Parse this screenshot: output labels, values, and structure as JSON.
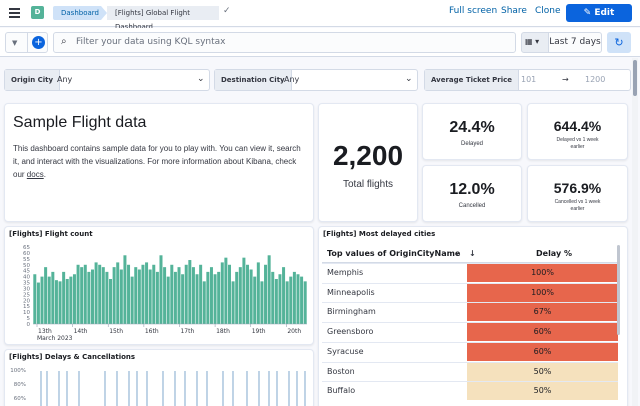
{
  "header": {
    "breadcrumb_root": "Dashboard",
    "breadcrumb_current": "[Flights] Global Flight Dashboard",
    "avatar_initial": "D",
    "full_screen": "Full screen",
    "share": "Share",
    "clone": "Clone",
    "edit": "Edit"
  },
  "query": {
    "placeholder": "Filter your data using KQL syntax",
    "time_range": "Last 7 days"
  },
  "controls": {
    "origin_label": "Origin City",
    "origin_value": "Any",
    "dest_label": "Destination City",
    "dest_value": "Any",
    "price_label": "Average Ticket Price",
    "price_min": "101",
    "price_arrow": "→",
    "price_max": "1200"
  },
  "intro": {
    "title": "Sample Flight data",
    "text": "This dashboard contains sample data for you to play with. You can view it, search it, and interact with the visualizations. For more information about Kibana, check our ",
    "link": "docs",
    "end": "."
  },
  "metrics": {
    "total_value": "2,200",
    "total_label": "Total flights",
    "delayed_value": "24.4%",
    "delayed_label": "Delayed",
    "delayed_vs_value": "644.4%",
    "delayed_vs_label": "Delayed vs 1 week earlier",
    "cancelled_value": "12.0%",
    "cancelled_label": "Cancelled",
    "cancelled_vs_value": "576.9%",
    "cancelled_vs_label": "Cancelled vs 1 week earlier"
  },
  "panels": {
    "flight_count_title": "[Flights] Flight count",
    "delays_title": "[Flights] Delays & Cancellations",
    "delayed_cities_title": "[Flights] Most delayed cities",
    "delays_ticks": [
      "100%",
      "80%",
      "60%"
    ]
  },
  "table": {
    "col_city": "Top values of OriginCityName",
    "col_delay": "Delay %",
    "rows": [
      {
        "city": "Memphis",
        "pct": "100%"
      },
      {
        "city": "Minneapolis",
        "pct": "100%"
      },
      {
        "city": "Birmingham",
        "pct": "67%"
      },
      {
        "city": "Greensboro",
        "pct": "60%"
      },
      {
        "city": "Syracuse",
        "pct": "60%"
      },
      {
        "city": "Boston",
        "pct": "50%"
      },
      {
        "city": "Buffalo",
        "pct": "50%"
      }
    ],
    "row_colors": [
      "#e7664c",
      "#e7664c",
      "#e7664c",
      "#e7664c",
      "#e7664c",
      "#f5e1bd",
      "#f5e1bd"
    ]
  },
  "chart_data": {
    "type": "bar",
    "title": "[Flights] Flight count",
    "xlabel": "March 2023",
    "ylabel": "",
    "ylim": [
      0,
      65
    ],
    "yticks": [
      "65",
      "60",
      "55",
      "50",
      "45",
      "40",
      "35",
      "30",
      "25",
      "20",
      "15",
      "10",
      "5",
      "0"
    ],
    "xticks": [
      "13th",
      "14th",
      "15th",
      "16th",
      "17th",
      "18th",
      "19th",
      "20th"
    ],
    "xlabel_row2": "March 2023",
    "color": "#54b399",
    "values": [
      42,
      35,
      40,
      48,
      40,
      44,
      37,
      36,
      44,
      38,
      40,
      42,
      50,
      48,
      50,
      44,
      46,
      52,
      50,
      48,
      44,
      38,
      48,
      52,
      46,
      58,
      50,
      40,
      48,
      46,
      50,
      52,
      46,
      50,
      44,
      58,
      48,
      40,
      50,
      44,
      48,
      42,
      50,
      54,
      48,
      42,
      50,
      36,
      44,
      48,
      42,
      44,
      52,
      56,
      50,
      36,
      44,
      48,
      56,
      50,
      46,
      40,
      52,
      36,
      50,
      58,
      44,
      38,
      42,
      48,
      36,
      40,
      44,
      42,
      40,
      36
    ]
  }
}
